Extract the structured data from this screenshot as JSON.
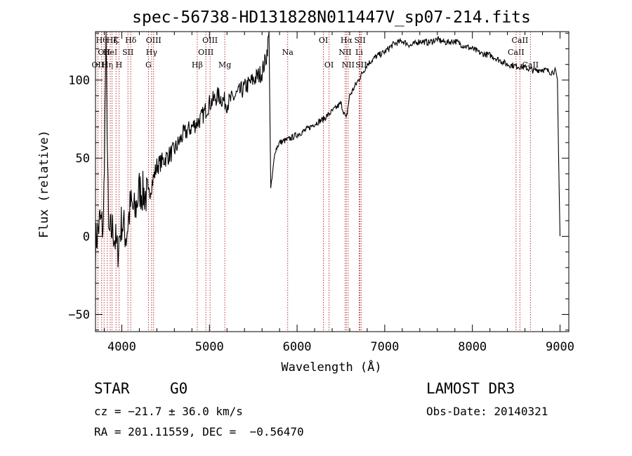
{
  "chart_data": {
    "type": "line",
    "title": "spec-56738-HD131828N011447V_sp07-214.fits",
    "xlabel": "Wavelength (Å)",
    "ylabel": "Flux (relative)",
    "xlim": [
      3700,
      9100
    ],
    "ylim": [
      -61,
      131
    ],
    "xticks": [
      4000,
      5000,
      6000,
      7000,
      8000,
      9000
    ],
    "xtick_labels": [
      "4000",
      "5000",
      "6000",
      "7000",
      "8000",
      "9000"
    ],
    "yticks": [
      -50,
      0,
      50,
      100
    ],
    "ytick_labels": [
      "−50",
      "0",
      "50",
      "100"
    ],
    "grid": false,
    "series": [
      {
        "name": "spectrum",
        "x": [
          3700,
          3750,
          3790,
          3820,
          3850,
          3900,
          3950,
          4000,
          4050,
          4100,
          4150,
          4200,
          4300,
          4400,
          4500,
          4600,
          4700,
          4800,
          4900,
          5000,
          5100,
          5200,
          5300,
          5400,
          5500,
          5600,
          5650,
          5680,
          5700,
          5750,
          5800,
          5900,
          6000,
          6100,
          6200,
          6300,
          6400,
          6500,
          6560,
          6600,
          6700,
          6800,
          6900,
          7000,
          7100,
          7200,
          7300,
          7400,
          7500,
          7600,
          7700,
          7800,
          7900,
          8000,
          8100,
          8200,
          8300,
          8400,
          8500,
          8600,
          8700,
          8800,
          8900,
          8950,
          8970,
          8990,
          9000
        ],
        "y": [
          -5,
          10,
          5,
          125,
          0,
          5,
          -10,
          10,
          0,
          20,
          15,
          30,
          25,
          45,
          50,
          55,
          65,
          70,
          75,
          85,
          90,
          85,
          90,
          95,
          100,
          105,
          115,
          130,
          30,
          55,
          60,
          62,
          65,
          68,
          72,
          75,
          80,
          85,
          75,
          90,
          100,
          110,
          115,
          118,
          123,
          125,
          122,
          125,
          124,
          126,
          124,
          125,
          122,
          120,
          117,
          116,
          113,
          110,
          109,
          108,
          106,
          107,
          105,
          106,
          100,
          30,
          0
        ]
      }
    ],
    "line_markers": [
      {
        "wavelength": 3770,
        "label": "Hθ",
        "row": 1
      },
      {
        "wavelength": 3798,
        "label": "OII",
        "row": 2
      },
      {
        "wavelength": 3835,
        "label": "Hη",
        "row": 3
      },
      {
        "wavelength": 3727,
        "label": "OII",
        "row": 3
      },
      {
        "wavelength": 3868,
        "label": "HeI",
        "row": 2
      },
      {
        "wavelength": 3889,
        "label": "Hζ",
        "row": 1
      },
      {
        "wavelength": 3934,
        "label": "K",
        "row": 1
      },
      {
        "wavelength": 3968,
        "label": "H",
        "row": 3
      },
      {
        "wavelength": 4070,
        "label": "SII",
        "row": 2
      },
      {
        "wavelength": 4102,
        "label": "Hδ",
        "row": 1
      },
      {
        "wavelength": 4304,
        "label": "G",
        "row": 3
      },
      {
        "wavelength": 4340,
        "label": "Hγ",
        "row": 2
      },
      {
        "wavelength": 4363,
        "label": "OIII",
        "row": 1
      },
      {
        "wavelength": 4861,
        "label": "Hβ",
        "row": 3
      },
      {
        "wavelength": 4959,
        "label": "OIII",
        "row": 2
      },
      {
        "wavelength": 5007,
        "label": "OIII",
        "row": 1
      },
      {
        "wavelength": 5175,
        "label": "Mg",
        "row": 3
      },
      {
        "wavelength": 5893,
        "label": "Na",
        "row": 2
      },
      {
        "wavelength": 6300,
        "label": "OI",
        "row": 1
      },
      {
        "wavelength": 6364,
        "label": "OI",
        "row": 3
      },
      {
        "wavelength": 6548,
        "label": "NII",
        "row": 2
      },
      {
        "wavelength": 6563,
        "label": "Hα",
        "row": 1
      },
      {
        "wavelength": 6583,
        "label": "NII",
        "row": 3
      },
      {
        "wavelength": 6708,
        "label": "Li",
        "row": 2
      },
      {
        "wavelength": 6717,
        "label": "SII",
        "row": 1
      },
      {
        "wavelength": 6731,
        "label": "SII",
        "row": 3
      },
      {
        "wavelength": 8498,
        "label": "CaII",
        "row": 2
      },
      {
        "wavelength": 8542,
        "label": "CaII",
        "row": 1
      },
      {
        "wavelength": 8662,
        "label": "CaII",
        "row": 3
      }
    ]
  },
  "info": {
    "class": "STAR",
    "subclass": "G0",
    "survey": "LAMOST DR3",
    "cz": "cz = −21.7 ± 36.0 km/s",
    "obs_date": "Obs-Date: 20140321",
    "coords": "RA = 201.11559, DEC =  −0.56470"
  }
}
